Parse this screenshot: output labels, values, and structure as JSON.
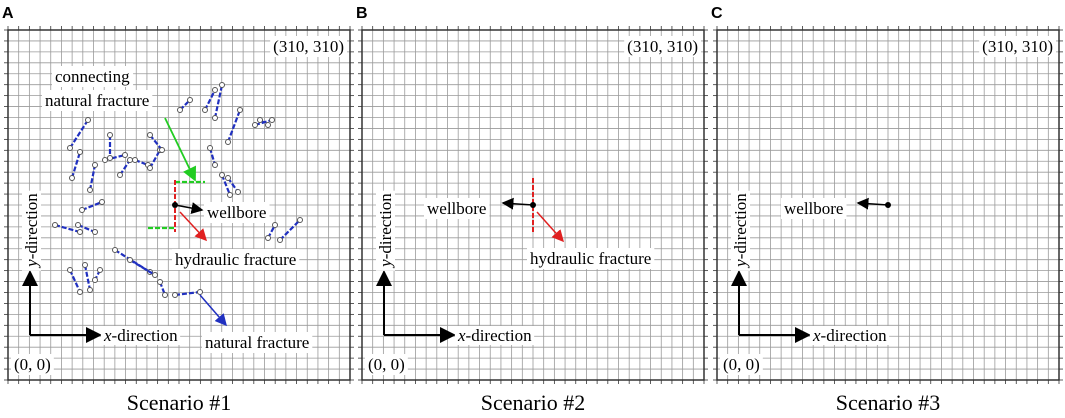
{
  "panels": [
    {
      "letter": "A",
      "corner_top": "(310, 310)",
      "corner_bottom": "(0, 0)",
      "axis_x": {
        "var": "x",
        "rest": "-direction"
      },
      "axis_y": {
        "var": "y",
        "rest": "-direction"
      },
      "labels": {
        "connecting": [
          "connecting",
          "natural fracture"
        ],
        "wellbore": "wellbore",
        "hydraulic": "hydraulic fracture",
        "natural": "natural fracture"
      },
      "caption": "Scenario #1"
    },
    {
      "letter": "B",
      "corner_top": "(310, 310)",
      "corner_bottom": "(0, 0)",
      "axis_x": {
        "var": "x",
        "rest": "-direction"
      },
      "axis_y": {
        "var": "y",
        "rest": "-direction"
      },
      "labels": {
        "wellbore": "wellbore",
        "hydraulic": "hydraulic fracture"
      },
      "caption": "Scenario #2"
    },
    {
      "letter": "C",
      "corner_top": "(310, 310)",
      "corner_bottom": "(0, 0)",
      "axis_x": {
        "var": "x",
        "rest": "-direction"
      },
      "axis_y": {
        "var": "y",
        "rest": "-direction"
      },
      "labels": {
        "wellbore": "wellbore"
      },
      "caption": "Scenario #3"
    }
  ]
}
